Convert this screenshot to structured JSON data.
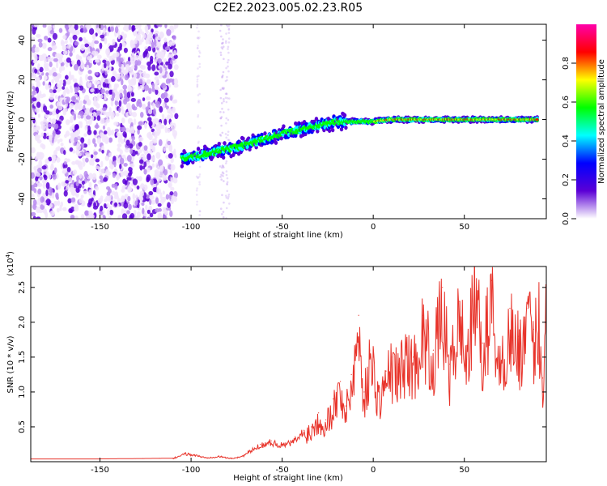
{
  "title": "C2E2.2023.005.02.23.R05",
  "colors": {
    "line": "#e8332a",
    "scatter_low": "#f1e4fb",
    "scatter_high": "#5b00d6",
    "frame": "#000000"
  },
  "chart_data": [
    {
      "type": "heatmap",
      "title": "C2E2.2023.005.02.23.R05",
      "xlabel": "Height of straight line (km)",
      "ylabel": "Frequency (Hz)",
      "xlim": [
        -188,
        95
      ],
      "ylim": [
        -50,
        48
      ],
      "xticks": [
        -150,
        -100,
        -50,
        0,
        50
      ],
      "xtick_labels": [
        "-150",
        "-100",
        "-50",
        "0",
        "50"
      ],
      "yticks": [
        -40,
        -20,
        0,
        20,
        40
      ],
      "ytick_labels": [
        "-40",
        "-20",
        "0",
        "20",
        "40"
      ],
      "colorbar": {
        "label": "Normalized spectral amplitude",
        "range": [
          0,
          1
        ],
        "ticks": [
          0.0,
          0.2,
          0.4,
          0.6,
          0.8
        ],
        "tick_labels": [
          "0.0",
          "0.2",
          "0.4",
          "0.6",
          "0.8"
        ],
        "colormap": [
          "#ffffff",
          "#5b00d6",
          "#0000ff",
          "#00ffff",
          "#00ff00",
          "#ffff00",
          "#ff0000",
          "#ff00aa"
        ]
      },
      "signal_trace": {
        "x": [
          -105,
          -90,
          -75,
          -60,
          -45,
          -30,
          -20,
          -10,
          0,
          10,
          30,
          60,
          90
        ],
        "y": [
          -20,
          -17,
          -14,
          -10,
          -6,
          -3,
          -1,
          -1,
          -1,
          0,
          0,
          0,
          0
        ]
      },
      "noise_region_x": [
        -188,
        -108
      ],
      "grid": false
    },
    {
      "type": "line",
      "xlabel": "Height of straight line (km)",
      "ylabel": "SNR (10 * v/v)",
      "ylabel_exponent_base": "(x10",
      "ylabel_exponent_power": "4",
      "ylabel_exponent_close": ")",
      "xlim": [
        -188,
        95
      ],
      "ylim": [
        0,
        2.8
      ],
      "xticks": [
        -150,
        -100,
        -50,
        0,
        50
      ],
      "xtick_labels": [
        "-150",
        "-100",
        "-50",
        "0",
        "50"
      ],
      "yticks": [
        0.5,
        1.0,
        1.5,
        2.0,
        2.5
      ],
      "ytick_labels": [
        "0.5",
        "1.0",
        "1.5",
        "2.0",
        "2.5"
      ],
      "series": [
        {
          "x": [
            -188,
            -150,
            -110,
            -103,
            -98,
            -92,
            -85,
            -78,
            -72,
            -68,
            -62,
            -56,
            -50,
            -44,
            -38,
            -34,
            -30,
            -26,
            -22,
            -18,
            -15,
            -12,
            -8,
            -5,
            -2,
            0,
            3,
            7,
            10,
            14,
            18,
            22,
            27,
            33,
            38,
            42,
            47,
            52,
            56,
            60,
            65,
            70,
            75,
            80,
            85,
            88,
            91,
            93,
            95
          ],
          "y": [
            0.04,
            0.04,
            0.05,
            0.12,
            0.1,
            0.06,
            0.08,
            0.05,
            0.08,
            0.15,
            0.25,
            0.3,
            0.25,
            0.3,
            0.45,
            0.5,
            0.7,
            0.6,
            0.9,
            1.15,
            0.8,
            1.25,
            2.1,
            1.0,
            1.6,
            1.5,
            1.0,
            1.3,
            1.5,
            1.4,
            1.7,
            1.5,
            2.1,
            1.6,
            2.5,
            1.4,
            2.3,
            1.7,
            2.8,
            1.7,
            2.6,
            1.4,
            2.2,
            1.8,
            2.2,
            1.9,
            2.3,
            1.2,
            2.6
          ]
        }
      ],
      "grid": false
    }
  ]
}
